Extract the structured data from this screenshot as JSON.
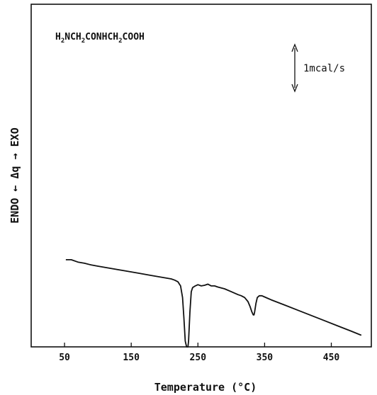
{
  "chart_data": {
    "type": "line",
    "annotation_formula": {
      "parts": [
        {
          "text": "H",
          "sub": false
        },
        {
          "text": "2",
          "sub": true
        },
        {
          "text": "NCH",
          "sub": false
        },
        {
          "text": "2",
          "sub": true
        },
        {
          "text": "CONHCH",
          "sub": false
        },
        {
          "text": "2",
          "sub": true
        },
        {
          "text": "COOH",
          "sub": false
        }
      ]
    },
    "scale_bar": {
      "label": "1mcal/s",
      "value": 1
    },
    "xlabel": "Temperature (°C)",
    "ylabel": "ENDO ← Δq → EXO",
    "xlim": [
      0,
      510
    ],
    "ylim": [
      -1.5,
      4.4
    ],
    "xticks": [
      50,
      150,
      250,
      350,
      450
    ],
    "xtick_labels": [
      "50",
      "150",
      "250",
      "350",
      "450"
    ],
    "grid": false,
    "series": [
      {
        "x": [
          52,
          60,
          70,
          80,
          90,
          100,
          120,
          140,
          160,
          180,
          200,
          210,
          215,
          220,
          224,
          227,
          229,
          231,
          233,
          235,
          236,
          238,
          240,
          242,
          246,
          250,
          255,
          260,
          265,
          270,
          275,
          280,
          290,
          300,
          310,
          315,
          320,
          325,
          328,
          331,
          333,
          334,
          335,
          337,
          339,
          342,
          346,
          350,
          360,
          380,
          400,
          420,
          440,
          460,
          480,
          495
        ],
        "y": [
          0.0,
          0.0,
          -0.04,
          -0.06,
          -0.09,
          -0.11,
          -0.15,
          -0.19,
          -0.23,
          -0.27,
          -0.31,
          -0.33,
          -0.35,
          -0.38,
          -0.45,
          -0.65,
          -1.0,
          -1.4,
          -1.5,
          -1.5,
          -1.4,
          -0.9,
          -0.55,
          -0.48,
          -0.45,
          -0.43,
          -0.45,
          -0.44,
          -0.42,
          -0.45,
          -0.45,
          -0.47,
          -0.5,
          -0.55,
          -0.6,
          -0.62,
          -0.65,
          -0.72,
          -0.8,
          -0.9,
          -0.95,
          -0.95,
          -0.9,
          -0.75,
          -0.65,
          -0.62,
          -0.62,
          -0.64,
          -0.69,
          -0.78,
          -0.87,
          -0.96,
          -1.05,
          -1.14,
          -1.23,
          -1.3
        ]
      }
    ]
  }
}
